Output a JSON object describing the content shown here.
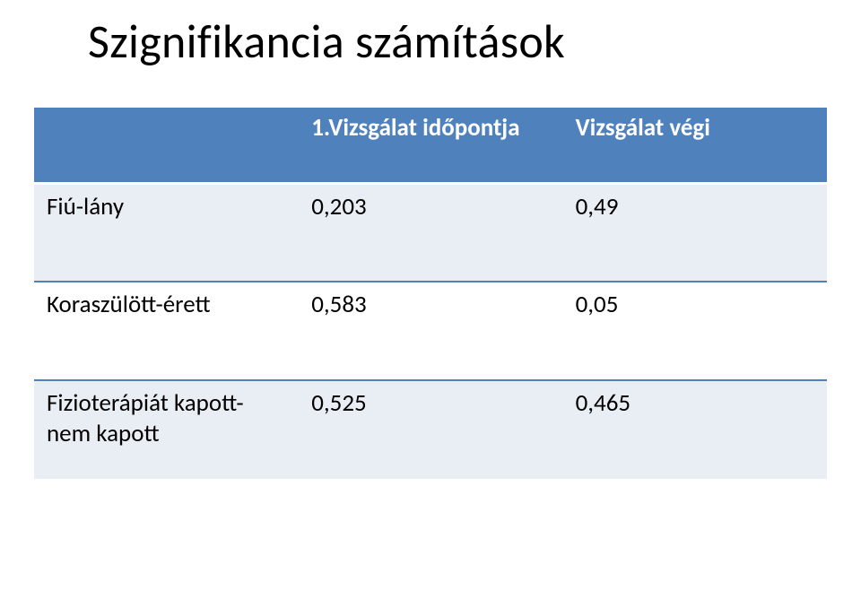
{
  "title": "Szignifikancia számítások",
  "table": {
    "header_bg": "#4f81bd",
    "header_text_color": "#ffffff",
    "alt_row_bg": "#e9edf4",
    "norm_row_bg": "#ffffff",
    "divider_color": "#4f81bd",
    "highlight_color": "#ff0000",
    "font_size_pt": 20,
    "columns": [
      {
        "label": ""
      },
      {
        "label": "1.Vizsgálat időpontja"
      },
      {
        "label": "Vizsgálat végi"
      }
    ],
    "rows": [
      {
        "label": "Fiú-lány",
        "values": [
          "0,203",
          "0,49"
        ],
        "highlight": [
          false,
          false
        ],
        "multiline": false
      },
      {
        "label": "Koraszülött-érett",
        "values": [
          "0,583",
          "0,05"
        ],
        "highlight": [
          false,
          true
        ],
        "multiline": false
      },
      {
        "label": "Fizioterápiát kapott-nem kapott",
        "values": [
          "0,525",
          "0,465"
        ],
        "highlight": [
          false,
          false
        ],
        "multiline": true
      }
    ]
  }
}
